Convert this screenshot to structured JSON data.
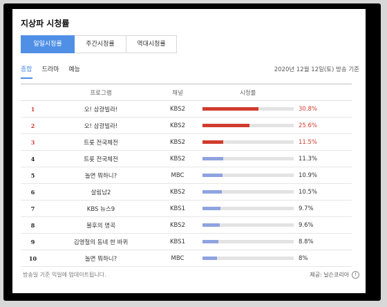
{
  "title": "지상파 시청률",
  "tabs": [
    {
      "label": "일일시청률"
    },
    {
      "label": "주간시청률"
    },
    {
      "label": "역대시청률"
    }
  ],
  "subtabs": [
    {
      "label": "종합"
    },
    {
      "label": "드라마"
    },
    {
      "label": "예능"
    }
  ],
  "date_text": "2020년 12월 12일(토) 방송 기준",
  "columns": {
    "program": "프로그램",
    "channel": "채널",
    "rating": "시청률"
  },
  "rows": [
    {
      "rank": "1",
      "program": "오! 삼광빌라!",
      "channel": "KBS2",
      "rating": "30.8%",
      "value": 30.8,
      "color": "#d03c2e"
    },
    {
      "rank": "2",
      "program": "오! 삼광빌라!",
      "channel": "KBS2",
      "rating": "25.6%",
      "value": 25.6,
      "color": "#d03c2e"
    },
    {
      "rank": "3",
      "program": "트롯 전국체전",
      "channel": "KBS2",
      "rating": "11.5%",
      "value": 11.5,
      "color": "#d03c2e"
    },
    {
      "rank": "4",
      "program": "트롯 전국체전",
      "channel": "KBS2",
      "rating": "11.3%",
      "value": 11.3,
      "color": "#8fa3e0"
    },
    {
      "rank": "5",
      "program": "놀면 뭐하니?",
      "channel": "MBC",
      "rating": "10.9%",
      "value": 10.9,
      "color": "#8fa3e0"
    },
    {
      "rank": "6",
      "program": "살림남2",
      "channel": "KBS2",
      "rating": "10.5%",
      "value": 10.5,
      "color": "#8fa3e0"
    },
    {
      "rank": "7",
      "program": "KBS 뉴스9",
      "channel": "KBS1",
      "rating": "9.7%",
      "value": 9.7,
      "color": "#8fa3e0"
    },
    {
      "rank": "8",
      "program": "불후의 명곡",
      "channel": "KBS2",
      "rating": "9.6%",
      "value": 9.6,
      "color": "#8fa3e0"
    },
    {
      "rank": "9",
      "program": "김영철의 동네 한 바퀴",
      "channel": "KBS1",
      "rating": "8.8%",
      "value": 8.8,
      "color": "#8fa3e0"
    },
    {
      "rank": "10",
      "program": "놀면 뭐하니?",
      "channel": "MBC",
      "rating": "8%",
      "value": 8,
      "color": "#8fa3e0"
    }
  ],
  "rating_scale_max": 50,
  "footer_left": "방송일 기준 익일에 업데이트됩니다.",
  "footer_right": "제공: 닐슨코리아",
  "info_icon": "info-icon"
}
